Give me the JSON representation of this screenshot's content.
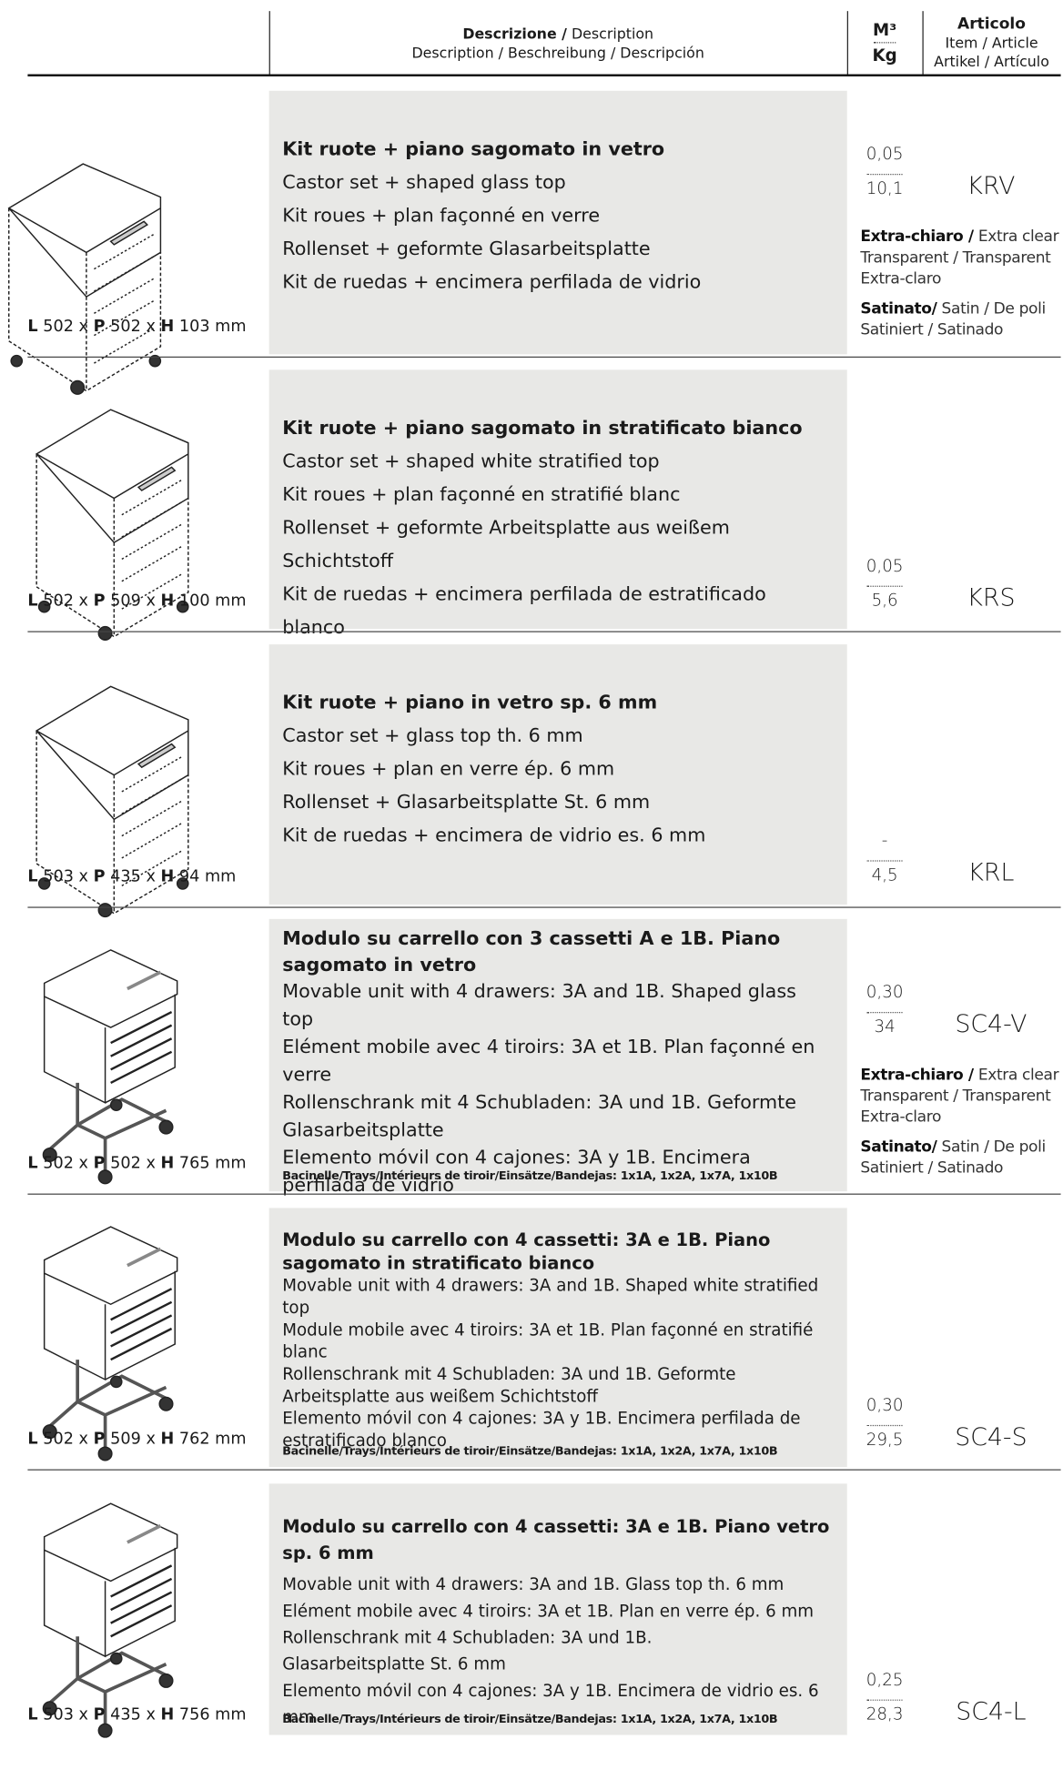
{
  "header": {
    "description": [
      "Descrizione /",
      " Description"
    ],
    "description_sub": "Description / Beschreibung / Descripción",
    "volume": "M³",
    "weight": "Kg",
    "article": "Articolo",
    "article_sub": [
      "Item / Article",
      "Artikel / Artículo"
    ]
  },
  "rows": [
    {
      "dimensions": [
        "L",
        " 502 x ",
        "P",
        " 502 x ",
        "H",
        " 103 mm"
      ],
      "title": "Kit ruote + piano sagomato in vetro",
      "lines": [
        "Castor set + shaped glass top",
        "Kit roues + plan façonné en verre",
        "Rollenset + geformte Glasarbeitsplatte",
        "Kit de ruedas + encimera perfilada de vidrio"
      ],
      "volume": "0,05",
      "weight": "10,1",
      "code": "KRV",
      "finishes": [
        {
          "label": "Extra-chiaro /",
          "lines": [
            " Extra clear",
            "Transparent / Transparent",
            "Extra-claro"
          ]
        },
        {
          "label": "Satinato/",
          "lines": [
            " Satin / De poli",
            "Satiniert / Satinado"
          ]
        }
      ]
    },
    {
      "dimensions": [
        "L",
        " 502 x ",
        "P",
        " 509 x ",
        "H",
        " 100 mm"
      ],
      "title": "Kit ruote + piano sagomato in stratificato bianco",
      "lines": [
        "Castor set + shaped white stratified top",
        "Kit roues + plan façonné en stratifié blanc",
        "Rollenset + geformte Arbeitsplatte aus weißem Schichtstoff",
        "Kit de ruedas + encimera perfilada de estratificado blanco"
      ],
      "volume": "0,05",
      "weight": "5,6",
      "code": "KRS"
    },
    {
      "dimensions": [
        "L",
        " 503 x ",
        "P",
        " 435 x ",
        "H",
        " 94 mm"
      ],
      "title": "Kit ruote + piano in vetro sp. 6 mm",
      "lines": [
        "Castor set + glass top th. 6 mm",
        "Kit roues + plan en verre ép. 6 mm",
        "Rollenset + Glasarbeitsplatte St. 6 mm",
        "Kit de ruedas + encimera de vidrio es. 6 mm"
      ],
      "volume": "-",
      "weight": "4,5",
      "code": "KRL"
    },
    {
      "dimensions": [
        "L",
        " 502 x ",
        "P",
        " 502 x ",
        "H",
        " 765 mm"
      ],
      "title": "Modulo su carrello con 3 cassetti A e 1B. Piano sagomato in vetro",
      "lines": [
        "Movable unit with 4 drawers: 3A and 1B. Shaped glass top",
        "Elément mobile avec 4 tiroirs: 3A et 1B. Plan façonné en verre",
        "Rollenschrank mit 4 Schubladen: 3A und 1B. Geformte Glasarbeitsplatte",
        "Elemento móvil con 4 cajones: 3A y 1B. Encimera perfilada de vidrio"
      ],
      "trays": "Bacinelle/Trays/Intérieurs de tiroir/Einsätze/Bandejas:  1x1A, 1x2A, 1x7A, 1x10B",
      "volume": "0,30",
      "weight": "34",
      "code": "SC4-V",
      "finishes": [
        {
          "label": "Extra-chiaro /",
          "lines": [
            " Extra clear",
            "Transparent / Transparent",
            "Extra-claro"
          ]
        },
        {
          "label": "Satinato/",
          "lines": [
            " Satin / De poli",
            "Satiniert / Satinado"
          ]
        }
      ]
    },
    {
      "dimensions": [
        "L",
        " 502 x ",
        "P",
        " 509 x ",
        "H",
        " 762 mm"
      ],
      "title": "Modulo su carrello con 4 cassetti: 3A e 1B. Piano sagomato in stratificato bianco",
      "lines": [
        "Movable unit with 4 drawers: 3A and 1B. Shaped white stratified top",
        "Module mobile avec 4 tiroirs: 3A et 1B. Plan façonné en stratifié blanc",
        "Rollenschrank mit 4 Schubladen: 3A und 1B. Geformte Arbeitsplatte aus weißem Schichtstoff",
        "Elemento móvil con 4 cajones: 3A y 1B. Encimera perfilada de estratificado blanco"
      ],
      "trays": "Bacinelle/Trays/Intérieurs de tiroir/Einsätze/Bandejas:  1x1A, 1x2A, 1x7A, 1x10B",
      "volume": "0,30",
      "weight": "29,5",
      "code": "SC4-S"
    },
    {
      "dimensions": [
        "L",
        " 503 x ",
        "P",
        " 435 x ",
        "H",
        " 756 mm"
      ],
      "title": "Modulo su carrello con 4 cassetti: 3A e 1B. Piano vetro sp. 6 mm",
      "lines": [
        "Movable unit with 4 drawers: 3A and 1B. Glass top th. 6 mm",
        "Elément mobile avec 4 tiroirs: 3A et 1B. Plan en verre ép. 6 mm",
        "Rollenschrank mit 4 Schubladen: 3A und 1B.\nGlasarbeitsplatte St. 6 mm",
        "Elemento móvil con 4 cajones: 3A y 1B. Encimera de vidrio es. 6 mm"
      ],
      "trays": "Bacinelle/Trays/Intérieurs de tiroir/Einsätze/Bandejas:  1x1A, 1x2A, 1x7A, 1x10B",
      "volume": "0,25",
      "weight": "28,3",
      "code": "SC4-L"
    }
  ]
}
